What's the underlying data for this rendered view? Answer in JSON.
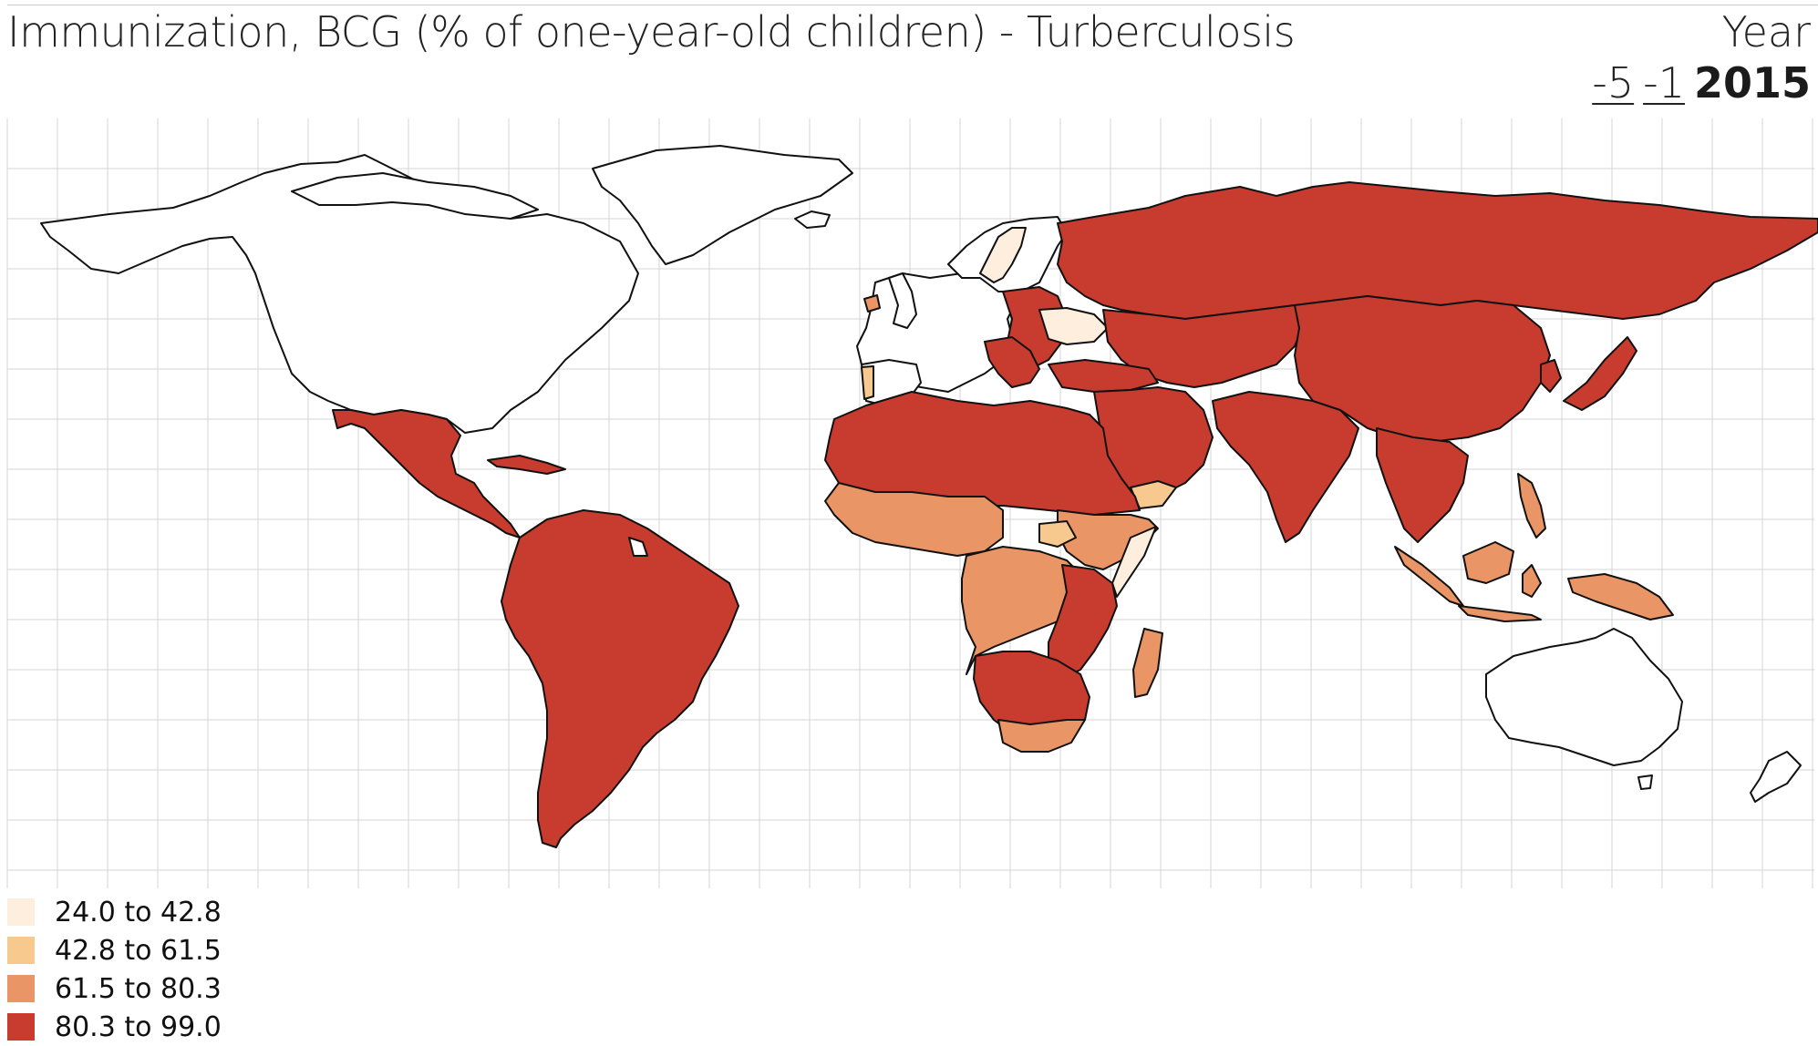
{
  "title": "Immunization, BCG (% of one-year-old children) - Turberculosis",
  "year": {
    "label": "Year",
    "step_back_5": "-5",
    "step_back_1": "-1",
    "current": "2015"
  },
  "legend": [
    {
      "label": "24.0 to 42.8",
      "color": "#fdeedd"
    },
    {
      "label": "42.8 to 61.5",
      "color": "#f8c98f"
    },
    {
      "label": "61.5 to 80.3",
      "color": "#ea9565"
    },
    {
      "label": "80.3 to 99.0",
      "color": "#c73c2e"
    }
  ],
  "colors": {
    "no_data": "#ffffff",
    "border": "#111111",
    "grid": "#d4d4d4"
  }
}
